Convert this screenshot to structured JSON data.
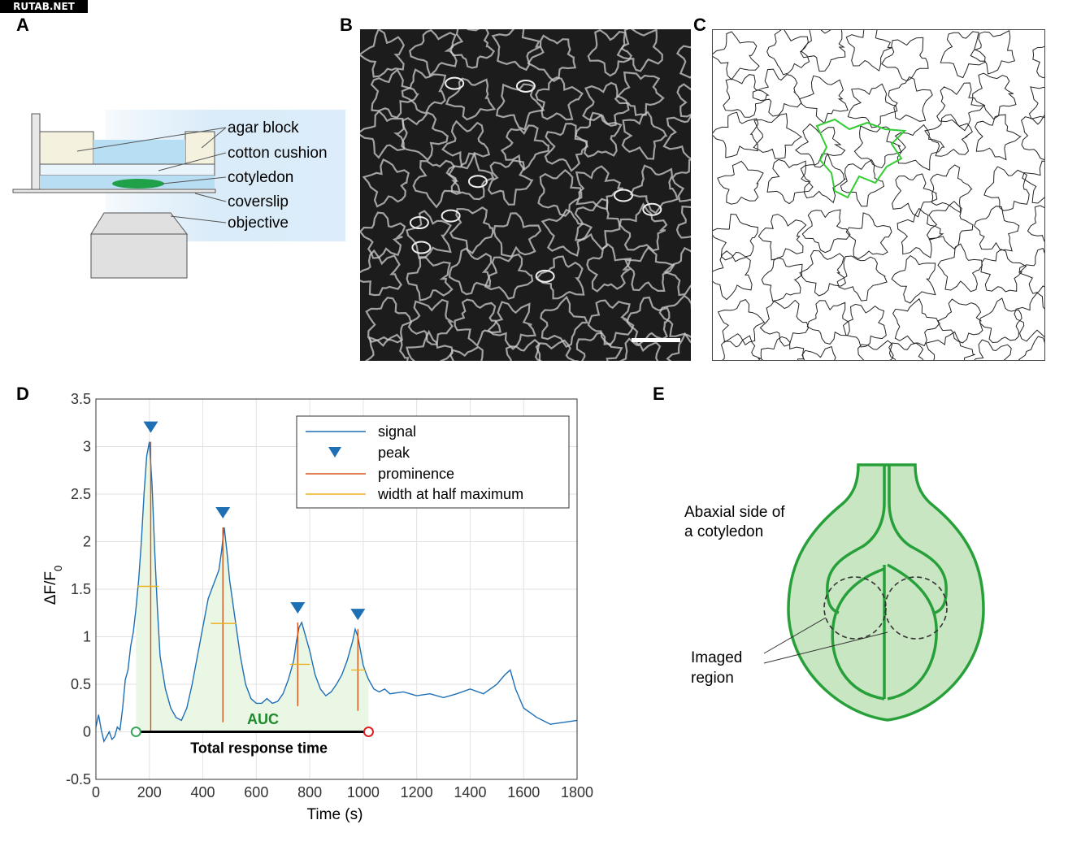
{
  "watermark": "RUTAB.NET",
  "panels": {
    "a": "A",
    "b": "B",
    "c": "C",
    "d": "D",
    "e": "E"
  },
  "panel_a": {
    "labels": [
      "agar block",
      "cotton cushion",
      "cotyledon",
      "coverslip",
      "objective"
    ]
  },
  "panel_e": {
    "title_line1": "Abaxial side of",
    "title_line2": "a cotyledon",
    "imaged_line1": "Imaged",
    "imaged_line2": "region",
    "fill_color": "#c9e6c3",
    "stroke_color": "#27a03a"
  },
  "chart_data": {
    "type": "line",
    "xlabel": "Time (s)",
    "ylabel": "ΔF/F0",
    "xlim": [
      0,
      1800
    ],
    "ylim": [
      -0.5,
      3.5
    ],
    "xticks": [
      0,
      200,
      400,
      600,
      800,
      1000,
      1200,
      1400,
      1600,
      1800
    ],
    "yticks": [
      -0.5,
      0,
      0.5,
      1,
      1.5,
      2,
      2.5,
      3,
      3.5
    ],
    "grid": true,
    "legend": {
      "position": "top-right",
      "entries": [
        "signal",
        "peak",
        "prominence",
        "width at half maximum"
      ]
    },
    "annotations": {
      "auc": "AUC",
      "total_response": "Total response time"
    },
    "colors": {
      "signal": "#1f6fb5",
      "peak": "#1f6fb5",
      "prominence": "#d95319",
      "width": "#edb120",
      "auc_fill": "#eaf7e4",
      "auc_text": "#1e8a2e",
      "start_marker": "#3aa55c",
      "end_marker": "#e02020"
    },
    "series": [
      {
        "name": "signal",
        "x": [
          0,
          10,
          20,
          30,
          40,
          50,
          60,
          70,
          80,
          90,
          100,
          110,
          120,
          130,
          140,
          150,
          160,
          170,
          180,
          190,
          200,
          210,
          220,
          230,
          240,
          260,
          280,
          300,
          320,
          340,
          360,
          380,
          400,
          420,
          440,
          460,
          470,
          480,
          490,
          500,
          520,
          540,
          560,
          580,
          600,
          620,
          640,
          660,
          680,
          700,
          720,
          740,
          750,
          760,
          770,
          780,
          800,
          820,
          840,
          860,
          880,
          900,
          920,
          940,
          960,
          970,
          980,
          990,
          1000,
          1010,
          1020,
          1040,
          1060,
          1080,
          1100,
          1150,
          1200,
          1250,
          1300,
          1350,
          1400,
          1450,
          1500,
          1530,
          1550,
          1570,
          1600,
          1650,
          1700,
          1750,
          1800
        ],
        "y": [
          0.05,
          0.18,
          0.02,
          -0.1,
          -0.05,
          0.0,
          -0.08,
          -0.05,
          0.05,
          0.02,
          0.25,
          0.55,
          0.65,
          0.9,
          1.05,
          1.3,
          1.6,
          2.0,
          2.5,
          2.9,
          3.05,
          2.6,
          1.9,
          1.3,
          0.8,
          0.45,
          0.25,
          0.15,
          0.12,
          0.25,
          0.5,
          0.8,
          1.1,
          1.4,
          1.55,
          1.7,
          1.9,
          2.15,
          1.9,
          1.6,
          1.2,
          0.8,
          0.5,
          0.35,
          0.3,
          0.3,
          0.35,
          0.3,
          0.32,
          0.4,
          0.55,
          0.75,
          0.95,
          1.1,
          1.15,
          1.05,
          0.85,
          0.6,
          0.45,
          0.38,
          0.42,
          0.5,
          0.6,
          0.75,
          0.95,
          1.08,
          1.0,
          0.85,
          0.7,
          0.62,
          0.55,
          0.45,
          0.42,
          0.45,
          0.4,
          0.42,
          0.38,
          0.4,
          0.36,
          0.4,
          0.45,
          0.4,
          0.5,
          0.6,
          0.65,
          0.45,
          0.25,
          0.15,
          0.08,
          0.1,
          0.12
        ]
      }
    ],
    "peaks": [
      {
        "x": 205,
        "y": 3.05,
        "half_width_level": 1.53,
        "half_left": 155,
        "half_right": 235,
        "base": 0.0
      },
      {
        "x": 475,
        "y": 2.15,
        "half_width_level": 1.14,
        "half_left": 430,
        "half_right": 525,
        "base": 0.1
      },
      {
        "x": 755,
        "y": 1.15,
        "half_width_level": 0.71,
        "half_left": 725,
        "half_right": 800,
        "base": 0.27
      },
      {
        "x": 980,
        "y": 1.08,
        "half_width_level": 0.65,
        "half_left": 955,
        "half_right": 1010,
        "base": 0.22
      }
    ],
    "response_window": {
      "start": 150,
      "end": 1020
    }
  }
}
